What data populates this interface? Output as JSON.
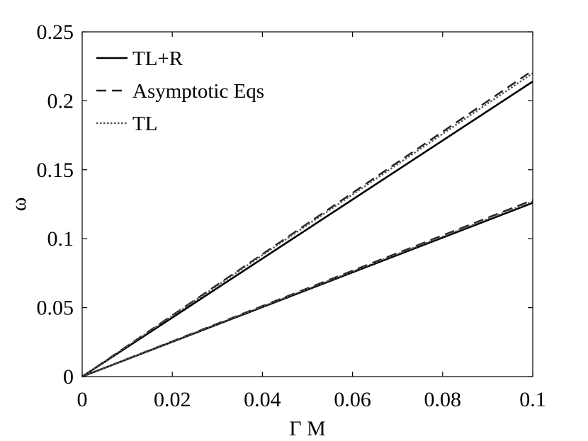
{
  "chart_data": {
    "type": "line",
    "title": "",
    "xlabel": "Γ M",
    "ylabel": "ω",
    "xlim": [
      0,
      0.1
    ],
    "ylim": [
      0,
      0.25
    ],
    "xticks": [
      0,
      0.02,
      0.04,
      0.06,
      0.08,
      0.1
    ],
    "xtick_labels": [
      "0",
      "0.02",
      "0.04",
      "0.06",
      "0.08",
      "0.1"
    ],
    "yticks": [
      0,
      0.05,
      0.1,
      0.15,
      0.2,
      0.25
    ],
    "ytick_labels": [
      "0",
      "0.05",
      "0.1",
      "0.15",
      "0.2",
      "0.25"
    ],
    "grid": false,
    "legend_position": "top-left",
    "legend": [
      "TL+R",
      "Asymptotic Eqs",
      "TL"
    ],
    "series": [
      {
        "name": "TL+R",
        "style": "solid",
        "color": "#000000",
        "x": [
          0,
          0.1
        ],
        "y": [
          0,
          0.214
        ]
      },
      {
        "name": "Asymptotic Eqs",
        "style": "dashed",
        "color": "#222222",
        "x": [
          0,
          0.1
        ],
        "y": [
          0,
          0.222
        ]
      },
      {
        "name": "TL",
        "style": "dotted",
        "color": "#555555",
        "x": [
          0,
          0.1
        ],
        "y": [
          0,
          0.22
        ]
      },
      {
        "name": "TL+R",
        "style": "solid",
        "color": "#000000",
        "x": [
          0,
          0.1
        ],
        "y": [
          0,
          0.126
        ]
      },
      {
        "name": "Asymptotic Eqs",
        "style": "dashed",
        "color": "#222222",
        "x": [
          0,
          0.1
        ],
        "y": [
          0,
          0.128
        ]
      },
      {
        "name": "TL",
        "style": "dotted",
        "color": "#555555",
        "x": [
          0,
          0.1
        ],
        "y": [
          0,
          0.127
        ]
      }
    ]
  }
}
